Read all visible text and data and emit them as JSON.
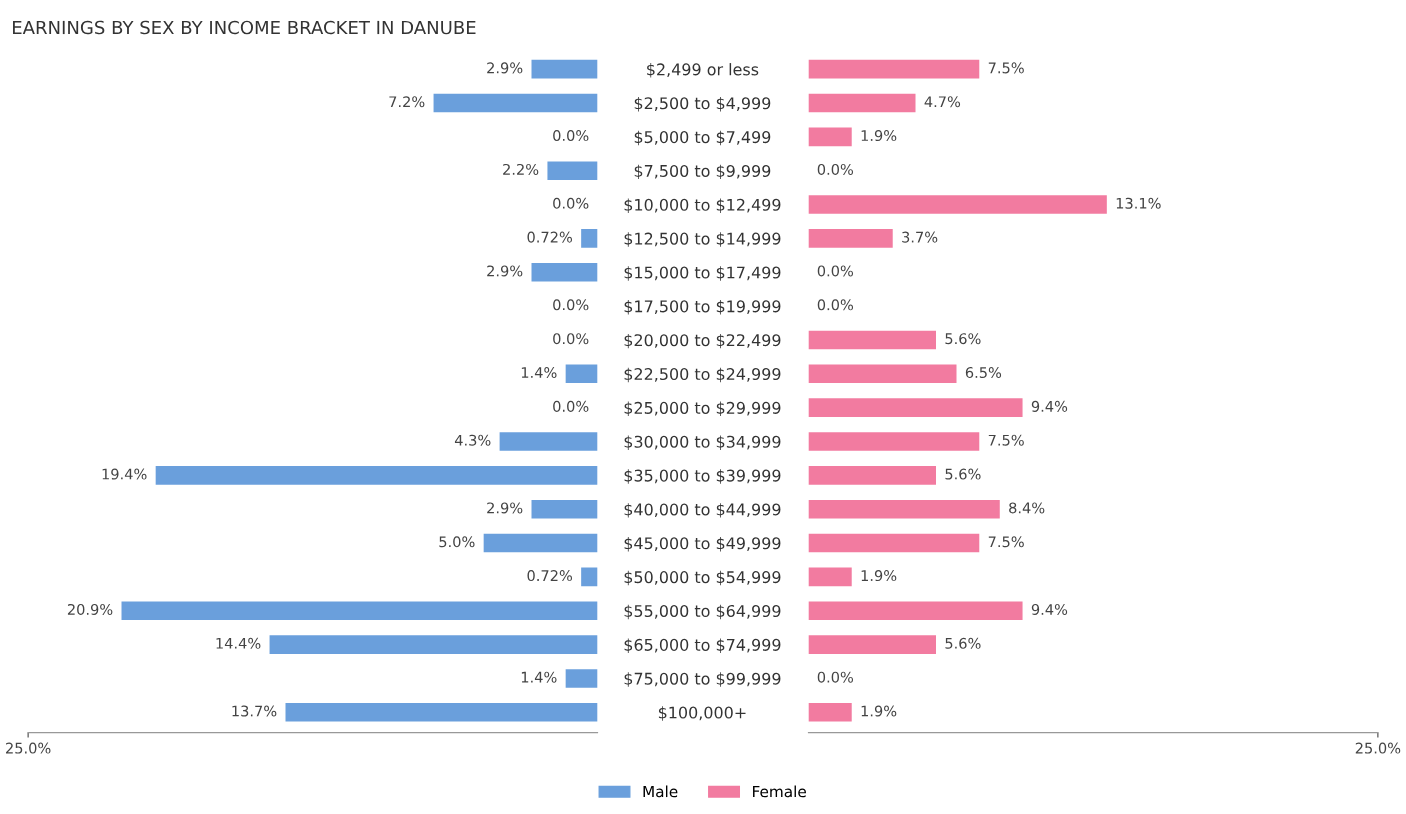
{
  "chart_data": [
    {
      "type": "bar",
      "orientation": "horizontal",
      "title": "EARNINGS BY SEX BY INCOME BRACKET IN DANUBE",
      "categories": [
        "$2,499 or less",
        "$2,500 to $4,999",
        "$5,000 to $7,499",
        "$7,500 to $9,999",
        "$10,000 to $12,499",
        "$12,500 to $14,999",
        "$15,000 to $17,499",
        "$17,500 to $19,999",
        "$20,000 to $22,499",
        "$22,500 to $24,999",
        "$25,000 to $29,999",
        "$30,000 to $34,999",
        "$35,000 to $39,999",
        "$40,000 to $44,999",
        "$45,000 to $49,999",
        "$50,000 to $54,999",
        "$55,000 to $64,999",
        "$65,000 to $74,999",
        "$75,000 to $99,999",
        "$100,000+"
      ],
      "series": [
        {
          "name": "Male",
          "color": "#6a9fdc",
          "values": [
            2.9,
            7.2,
            0.0,
            2.2,
            0.0,
            0.72,
            2.9,
            0.0,
            0.0,
            1.4,
            0.0,
            4.3,
            19.4,
            2.9,
            5.0,
            0.72,
            20.9,
            14.4,
            1.4,
            13.7
          ],
          "value_labels": [
            "2.9%",
            "7.2%",
            "0.0%",
            "2.2%",
            "0.0%",
            "0.72%",
            "2.9%",
            "0.0%",
            "0.0%",
            "1.4%",
            "0.0%",
            "4.3%",
            "19.4%",
            "2.9%",
            "5.0%",
            "0.72%",
            "20.9%",
            "14.4%",
            "1.4%",
            "13.7%"
          ]
        }
      ],
      "xlim": [
        25,
        0
      ],
      "xticks": [
        {
          "value": 25,
          "label": "25.0%"
        }
      ],
      "legend": "bottom"
    },
    {
      "type": "bar",
      "orientation": "horizontal",
      "tick_labels": "x",
      "categories": [
        null,
        null,
        null,
        null,
        null,
        null,
        null,
        null,
        null,
        null,
        null,
        null,
        null,
        null,
        null,
        null,
        null,
        null,
        null,
        null
      ],
      "series": [
        {
          "name": "Female",
          "color": "#f27ba0",
          "values": [
            7.5,
            4.7,
            1.9,
            0.0,
            13.1,
            3.7,
            0.0,
            0.0,
            5.6,
            6.5,
            9.4,
            7.5,
            5.6,
            8.4,
            7.5,
            1.9,
            9.4,
            5.6,
            0.0,
            1.9
          ],
          "value_labels": [
            "7.5%",
            "4.7%",
            "1.9%",
            "0.0%",
            "13.1%",
            "3.7%",
            "0.0%",
            "0.0%",
            "5.6%",
            "6.5%",
            "9.4%",
            "7.5%",
            "5.6%",
            "8.4%",
            "7.5%",
            "1.9%",
            "9.4%",
            "5.6%",
            "0.0%",
            "1.9%"
          ]
        }
      ],
      "xlim": [
        0,
        25
      ],
      "xticks": [
        {
          "value": 25,
          "label": "25.0%"
        }
      ],
      "legend": "bottom"
    }
  ]
}
